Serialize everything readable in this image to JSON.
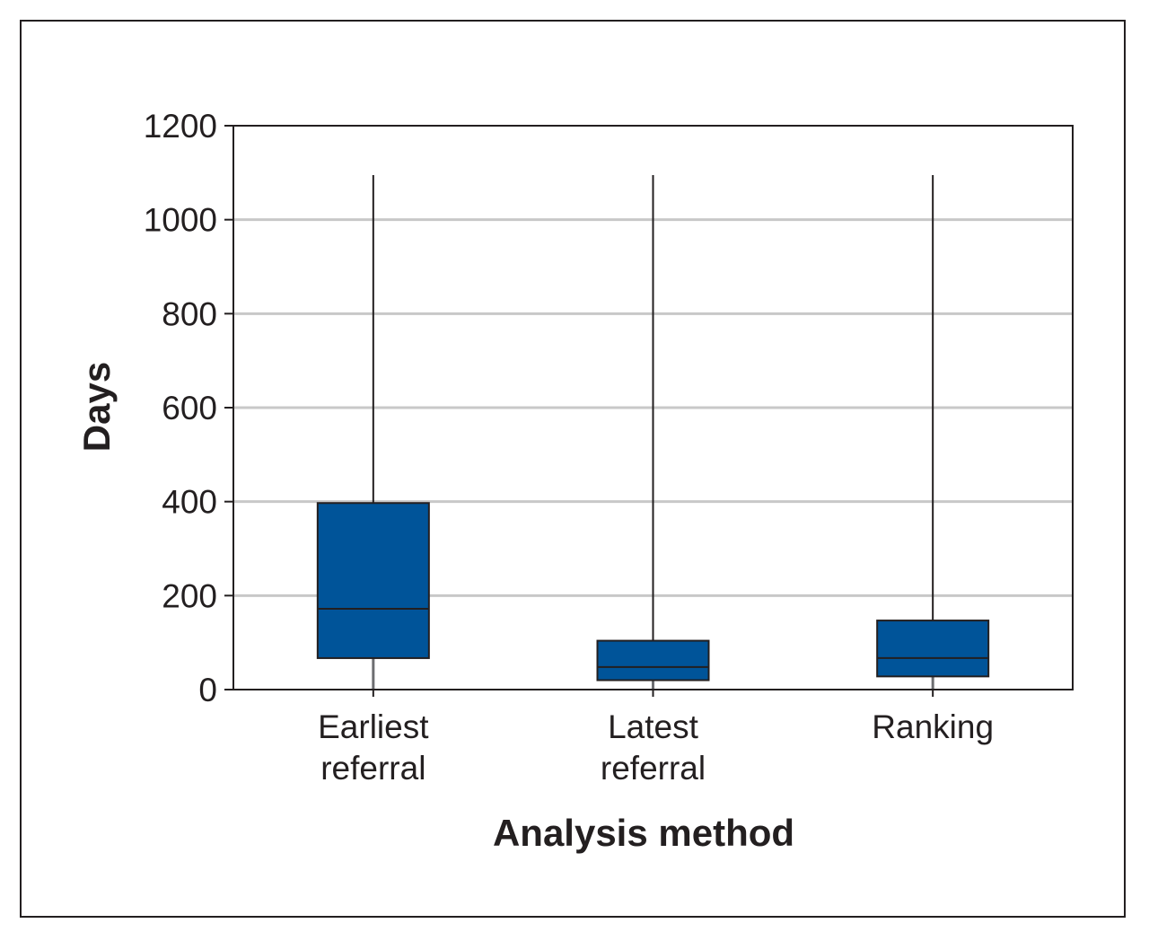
{
  "chart_data": {
    "type": "boxplot",
    "xlabel": "Analysis method",
    "ylabel": "Days",
    "ylim": [
      0,
      1200
    ],
    "yticks": [
      "0",
      "200",
      "400",
      "600",
      "800",
      "1000",
      "1200"
    ],
    "grid": true,
    "box_color": "#005499",
    "categories": [
      {
        "lines": [
          "Earliest",
          "referral"
        ]
      },
      {
        "lines": [
          "Latest",
          "referral"
        ]
      },
      {
        "lines": [
          "Ranking"
        ]
      }
    ],
    "boxes": [
      {
        "min": 0,
        "q1": 67,
        "median": 172,
        "q3": 397,
        "max": 1095
      },
      {
        "min": 0,
        "q1": 20,
        "median": 48,
        "q3": 104,
        "max": 1095
      },
      {
        "min": 0,
        "q1": 28,
        "median": 67,
        "q3": 147,
        "max": 1095
      }
    ]
  }
}
